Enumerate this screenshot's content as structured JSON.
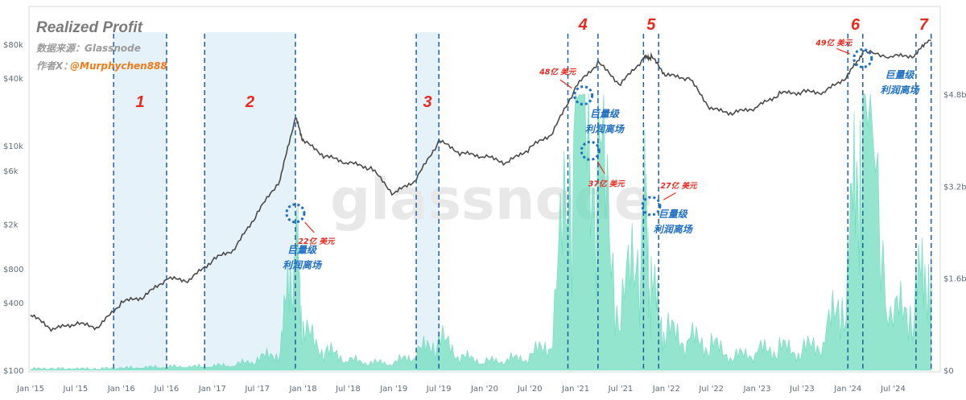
{
  "header": {
    "title": "Realized Profit",
    "source": "数据来源：Glassnode",
    "author_label": "作者X：",
    "author_handle": "@Murphychen888"
  },
  "watermark": "glassnode",
  "chart_data": {
    "type": "line",
    "title": "Realized Profit",
    "x": [
      "2015-01",
      "2015-04",
      "2015-07",
      "2015-10",
      "2016-01",
      "2016-04",
      "2016-07",
      "2016-10",
      "2017-01",
      "2017-04",
      "2017-07",
      "2017-10",
      "2017-12",
      "2018-01",
      "2018-04",
      "2018-07",
      "2018-10",
      "2019-01",
      "2019-04",
      "2019-07",
      "2019-10",
      "2020-01",
      "2020-04",
      "2020-07",
      "2020-10",
      "2021-01",
      "2021-04",
      "2021-07",
      "2021-10",
      "2021-11",
      "2022-01",
      "2022-04",
      "2022-07",
      "2022-10",
      "2023-01",
      "2023-04",
      "2023-07",
      "2023-10",
      "2024-01",
      "2024-03",
      "2024-07",
      "2024-10",
      "2024-12"
    ],
    "series": [
      {
        "axis": "left",
        "scale": "log",
        "color": "#4a4a4a",
        "values": [
          310,
          230,
          260,
          240,
          400,
          450,
          650,
          630,
          950,
          1200,
          2500,
          5000,
          18000,
          11000,
          8000,
          7000,
          6300,
          3700,
          5000,
          11000,
          8500,
          8000,
          7000,
          9500,
          13000,
          33000,
          55000,
          35000,
          60000,
          62000,
          42000,
          40000,
          21000,
          19500,
          22000,
          29000,
          30000,
          30000,
          42000,
          68000,
          62000,
          64000,
          96000
        ]
      },
      {
        "axis": "right",
        "color": "#6fdcbd",
        "values": [
          0.01,
          0.01,
          0.01,
          0.01,
          0.02,
          0.03,
          0.04,
          0.04,
          0.05,
          0.07,
          0.15,
          0.3,
          2.2,
          0.6,
          0.3,
          0.15,
          0.1,
          0.1,
          0.25,
          0.5,
          0.2,
          0.12,
          0.15,
          0.2,
          0.5,
          4.8,
          3.7,
          0.8,
          2.7,
          1.3,
          0.6,
          0.5,
          0.4,
          0.2,
          0.3,
          0.35,
          0.3,
          0.5,
          1.5,
          4.9,
          0.8,
          1.2,
          2.0
        ]
      }
    ],
    "left_axis": {
      "scale": "log",
      "ticks": [
        "$100",
        "$400",
        "$800",
        "$2k",
        "$6k",
        "$10k",
        "$40k",
        "$80k"
      ],
      "values": [
        100,
        400,
        800,
        2000,
        6000,
        10000,
        40000,
        80000
      ]
    },
    "right_axis": {
      "ticks": [
        "$0",
        "$1.6b",
        "$3.2b",
        "$4.8b"
      ],
      "values": [
        0,
        1.6,
        3.2,
        4.8
      ]
    },
    "x_ticks": [
      "Jan '15",
      "Jul '15",
      "Jan '16",
      "Jul '16",
      "Jan '17",
      "Jul '17",
      "Jan '18",
      "Jul '18",
      "Jan '19",
      "Jul '19",
      "Jan '20",
      "Jul '20",
      "Jan '21",
      "Jul '21",
      "Jan '22",
      "Jul '22",
      "Jan '23",
      "Jul '23",
      "Jan '24",
      "Jul '24"
    ],
    "x_tick_dates": [
      "2015-01",
      "2015-07",
      "2016-01",
      "2016-07",
      "2017-01",
      "2017-07",
      "2018-01",
      "2018-07",
      "2019-01",
      "2019-07",
      "2020-01",
      "2020-07",
      "2021-01",
      "2021-07",
      "2022-01",
      "2022-07",
      "2023-01",
      "2023-07",
      "2024-01",
      "2024-07"
    ],
    "phases": [
      {
        "label": "1",
        "start": "2015-12",
        "end": "2016-07",
        "shaded": true
      },
      {
        "label": "2",
        "start": "2016-12",
        "end": "2017-12",
        "shaded": true
      },
      {
        "label": "3",
        "start": "2019-04",
        "end": "2019-07",
        "shaded": true
      },
      {
        "label": "4",
        "start": "2020-12",
        "end": "2021-04",
        "shaded": false
      },
      {
        "label": "5",
        "start": "2021-10",
        "end": "2021-12",
        "shaded": false
      },
      {
        "label": "6",
        "start": "2024-01",
        "end": "2024-03",
        "shaded": false
      },
      {
        "label": "7",
        "start": "2024-10",
        "end": "2024-12",
        "shaded": false
      }
    ],
    "annotations": [
      {
        "text": "22亿 美元",
        "date": "2017-12",
        "price": 2500
      },
      {
        "text": "48亿 美元",
        "date": "2021-02",
        "price": 28000
      },
      {
        "text": "37亿 美元",
        "date": "2021-03",
        "price": 9000
      },
      {
        "text": "27亿 美元",
        "date": "2021-11",
        "price": 2900
      },
      {
        "text": "49亿 美元",
        "date": "2024-03",
        "price": 60000
      }
    ],
    "callouts": [
      {
        "line1": "巨量级",
        "line2": "利润离场",
        "date": "2017-12",
        "price": 1100
      },
      {
        "line1": "巨量级",
        "line2": "利润离场",
        "date": "2021-04",
        "price": 18000
      },
      {
        "line1": "巨量级",
        "line2": "利润离场",
        "date": "2022-01",
        "price": 2300
      },
      {
        "line1": "巨量级",
        "line2": "利润离场",
        "date": "2024-07",
        "price": 40000
      }
    ]
  },
  "colors": {
    "price_line": "#4a4a4a",
    "profit_area": "#6fdcbd",
    "phase_line": "#1f5fa8",
    "phase_fill": "#e6f2fa",
    "accent_red": "#e8291c",
    "accent_blue": "#1f6fc4",
    "author": "#f07a1a"
  }
}
